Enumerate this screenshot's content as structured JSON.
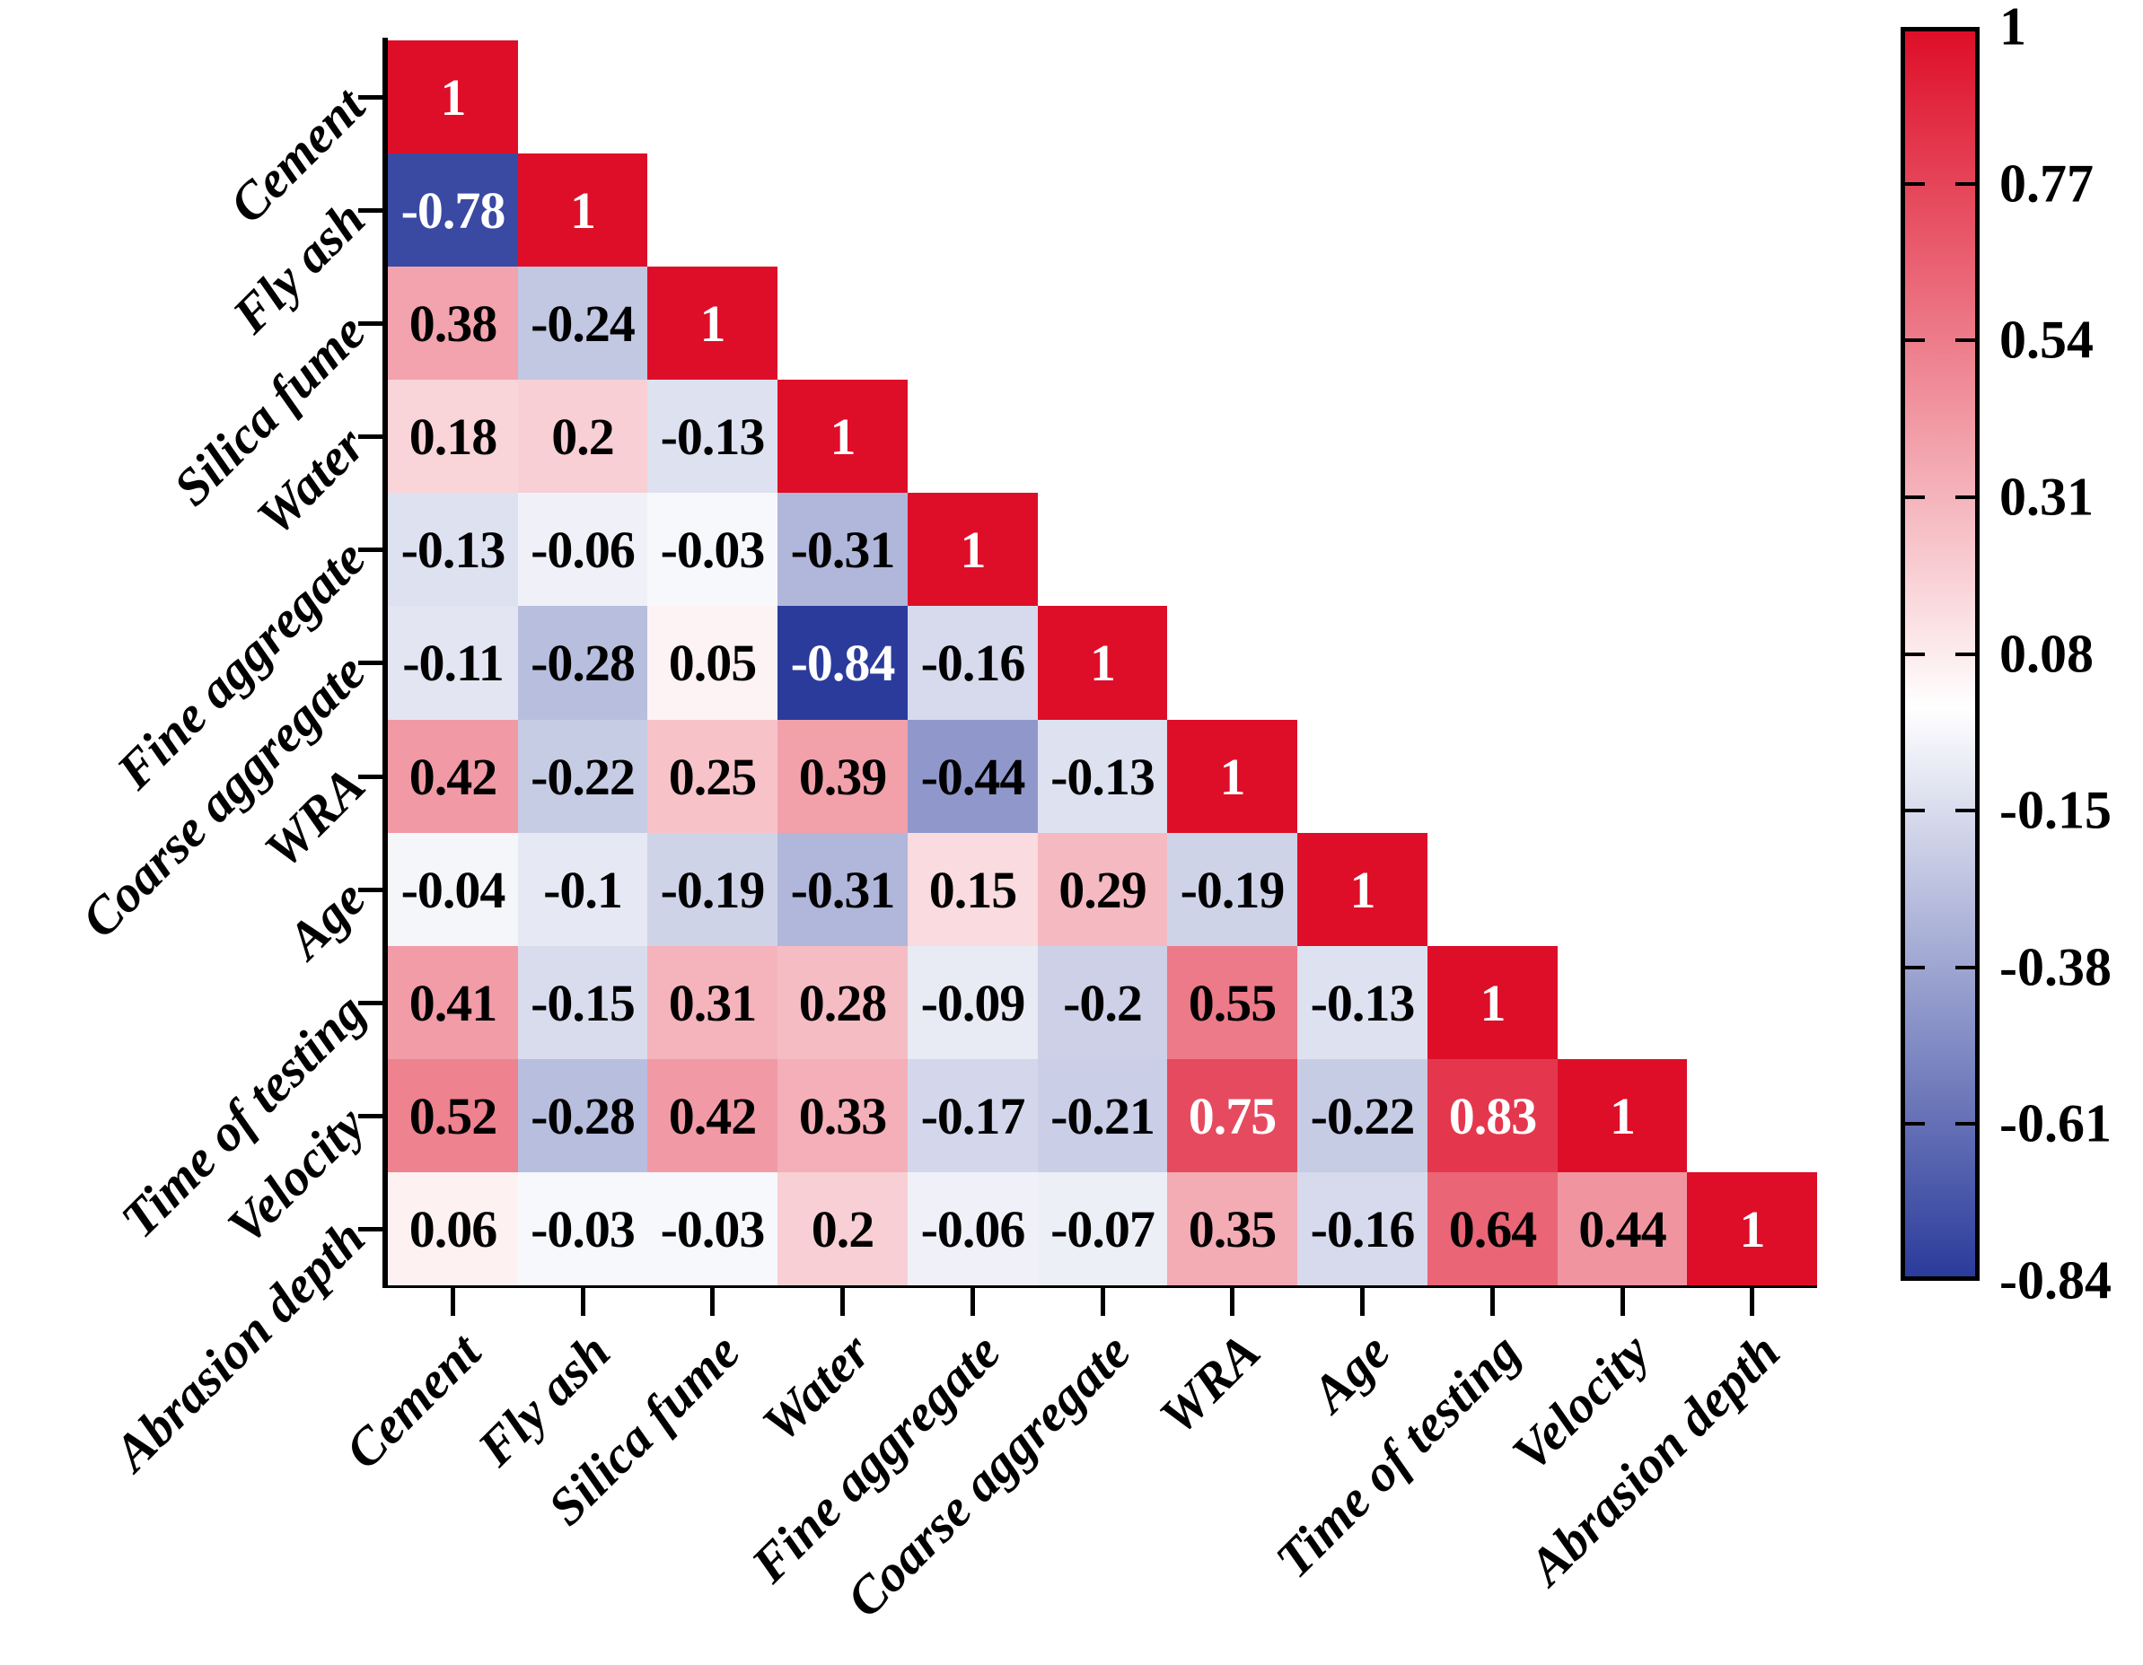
{
  "chart_data": {
    "type": "heatmap",
    "subtype": "lower-triangular-correlation-matrix",
    "title": "",
    "variables": [
      "Cement",
      "Fly ash",
      "Silica fume",
      "Water",
      "Fine aggregate",
      "Coarse aggregate",
      "WRA",
      "Age",
      "Time of testing",
      "Velocity",
      "Abrasion depth"
    ],
    "matrix": [
      [
        1
      ],
      [
        -0.78,
        1
      ],
      [
        0.38,
        -0.24,
        1
      ],
      [
        0.18,
        0.2,
        -0.13,
        1
      ],
      [
        -0.13,
        -0.06,
        -0.03,
        -0.31,
        1
      ],
      [
        -0.11,
        -0.28,
        0.05,
        -0.84,
        -0.16,
        1
      ],
      [
        0.42,
        -0.22,
        0.25,
        0.39,
        -0.44,
        -0.13,
        1
      ],
      [
        -0.04,
        -0.1,
        -0.19,
        -0.31,
        0.15,
        0.29,
        -0.19,
        1
      ],
      [
        0.41,
        -0.15,
        0.31,
        0.28,
        -0.09,
        -0.2,
        0.55,
        -0.13,
        1
      ],
      [
        0.52,
        -0.28,
        0.42,
        0.33,
        -0.17,
        -0.21,
        0.75,
        -0.22,
        0.83,
        1
      ],
      [
        0.06,
        -0.03,
        -0.03,
        0.2,
        -0.06,
        -0.07,
        0.35,
        -0.16,
        0.64,
        0.44,
        1
      ]
    ],
    "colorbar": {
      "labels": [
        "1",
        "0.77",
        "0.54",
        "0.31",
        "0.08",
        "-0.15",
        "-0.38",
        "-0.61",
        "-0.84"
      ],
      "max": 1,
      "min": -0.84,
      "position": "right"
    },
    "colors": {
      "positive_max": "#DE0E28",
      "zero": "#FFFFFF",
      "negative_min": "#2B3B9B",
      "value_text_black": "#000000",
      "value_text_white": "#FFFFFF",
      "white_text_threshold": 0.7
    },
    "grid": false,
    "axis_label_rotation_deg": -45
  }
}
